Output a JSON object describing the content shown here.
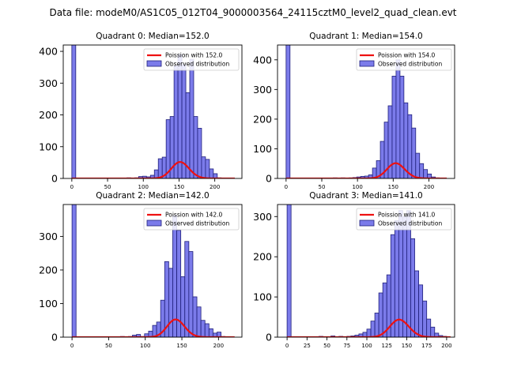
{
  "figure_title": "Data file: modeM0/AS1C05_012T04_9000003564_24115cztM0_level2_quad_clean.evt",
  "colors": {
    "bar_fill": "#7b7bea",
    "bar_edge": "#1f1f7a",
    "line": "#ee1111"
  },
  "chart_data": [
    {
      "type": "bar",
      "title": "Quadrant 0: Median=152.0",
      "xlim": [
        -12,
        238
      ],
      "ylim": [
        0,
        420
      ],
      "xticks": [
        0,
        50,
        100,
        150,
        200
      ],
      "yticks": [
        0,
        100,
        200,
        300,
        400
      ],
      "bin_width": 5.5,
      "legend": {
        "line_label": "Poission with 152.0",
        "bar_label": "Observed distribution",
        "position": "top-right"
      },
      "poisson_mean": 152.0,
      "line_scale": 1600,
      "line_xrange": [
        0,
        228
      ],
      "bars": [
        {
          "x": 0,
          "y": 420
        },
        {
          "x": 44,
          "y": 1
        },
        {
          "x": 55,
          "y": 1
        },
        {
          "x": 66,
          "y": 1
        },
        {
          "x": 77,
          "y": 2
        },
        {
          "x": 88,
          "y": 2
        },
        {
          "x": 93.5,
          "y": 6
        },
        {
          "x": 99,
          "y": 7
        },
        {
          "x": 104.5,
          "y": 5
        },
        {
          "x": 110,
          "y": 10
        },
        {
          "x": 115.5,
          "y": 27
        },
        {
          "x": 121,
          "y": 62
        },
        {
          "x": 126.5,
          "y": 67
        },
        {
          "x": 132,
          "y": 185
        },
        {
          "x": 137.5,
          "y": 195
        },
        {
          "x": 143,
          "y": 355
        },
        {
          "x": 148.5,
          "y": 390
        },
        {
          "x": 154,
          "y": 358
        },
        {
          "x": 159.5,
          "y": 270
        },
        {
          "x": 165,
          "y": 375
        },
        {
          "x": 170.5,
          "y": 195
        },
        {
          "x": 176,
          "y": 158
        },
        {
          "x": 181.5,
          "y": 68
        },
        {
          "x": 187,
          "y": 60
        },
        {
          "x": 192.5,
          "y": 30
        },
        {
          "x": 198,
          "y": 15
        },
        {
          "x": 203.5,
          "y": 2
        }
      ]
    },
    {
      "type": "bar",
      "title": "Quadrant 1: Median=154.0",
      "xlim": [
        -12,
        236
      ],
      "ylim": [
        0,
        450
      ],
      "xticks": [
        0,
        50,
        100,
        150,
        200
      ],
      "yticks": [
        0,
        100,
        200,
        300,
        400
      ],
      "bin_width": 5.5,
      "legend": {
        "line_label": "Poission with 154.0",
        "bar_label": "Observed distribution",
        "position": "top-right"
      },
      "poisson_mean": 154.0,
      "line_scale": 1600,
      "line_xrange": [
        0,
        225
      ],
      "bars": [
        {
          "x": 0,
          "y": 450
        },
        {
          "x": 44,
          "y": 1
        },
        {
          "x": 66,
          "y": 2
        },
        {
          "x": 77,
          "y": 2
        },
        {
          "x": 88,
          "y": 2
        },
        {
          "x": 93.5,
          "y": 3
        },
        {
          "x": 99,
          "y": 5
        },
        {
          "x": 104.5,
          "y": 7
        },
        {
          "x": 110,
          "y": 8
        },
        {
          "x": 115.5,
          "y": 12
        },
        {
          "x": 121,
          "y": 35
        },
        {
          "x": 126.5,
          "y": 60
        },
        {
          "x": 132,
          "y": 125
        },
        {
          "x": 137.5,
          "y": 190
        },
        {
          "x": 143,
          "y": 245
        },
        {
          "x": 148.5,
          "y": 345
        },
        {
          "x": 154,
          "y": 400
        },
        {
          "x": 159.5,
          "y": 345
        },
        {
          "x": 165,
          "y": 255
        },
        {
          "x": 170.5,
          "y": 215
        },
        {
          "x": 176,
          "y": 170
        },
        {
          "x": 181.5,
          "y": 85
        },
        {
          "x": 187,
          "y": 50
        },
        {
          "x": 192.5,
          "y": 30
        },
        {
          "x": 198,
          "y": 15
        },
        {
          "x": 203.5,
          "y": 5
        },
        {
          "x": 209,
          "y": 2
        }
      ]
    },
    {
      "type": "bar",
      "title": "Quadrant 2: Median=142.0",
      "xlim": [
        -12,
        232
      ],
      "ylim": [
        0,
        395
      ],
      "xticks": [
        0,
        50,
        100,
        150,
        200
      ],
      "yticks": [
        0,
        100,
        200,
        300
      ],
      "bin_width": 5.5,
      "legend": {
        "line_label": "Poission with 142.0",
        "bar_label": "Observed distribution",
        "position": "top-right"
      },
      "poisson_mean": 142.0,
      "line_scale": 1575,
      "line_xrange": [
        0,
        222
      ],
      "bars": [
        {
          "x": 0,
          "y": 395
        },
        {
          "x": 44,
          "y": 1
        },
        {
          "x": 55,
          "y": 1
        },
        {
          "x": 66,
          "y": 2
        },
        {
          "x": 71.5,
          "y": 1
        },
        {
          "x": 77,
          "y": 2
        },
        {
          "x": 82.5,
          "y": 6
        },
        {
          "x": 88,
          "y": 8
        },
        {
          "x": 93.5,
          "y": 2
        },
        {
          "x": 99,
          "y": 10
        },
        {
          "x": 104.5,
          "y": 18
        },
        {
          "x": 110,
          "y": 35
        },
        {
          "x": 115.5,
          "y": 45
        },
        {
          "x": 121,
          "y": 110
        },
        {
          "x": 126.5,
          "y": 225
        },
        {
          "x": 132,
          "y": 205
        },
        {
          "x": 137.5,
          "y": 362
        },
        {
          "x": 143,
          "y": 318
        },
        {
          "x": 148.5,
          "y": 180
        },
        {
          "x": 154,
          "y": 285
        },
        {
          "x": 159.5,
          "y": 255
        },
        {
          "x": 165,
          "y": 120
        },
        {
          "x": 170.5,
          "y": 90
        },
        {
          "x": 176,
          "y": 50
        },
        {
          "x": 181.5,
          "y": 40
        },
        {
          "x": 187,
          "y": 25
        },
        {
          "x": 192.5,
          "y": 12
        },
        {
          "x": 198,
          "y": 15
        },
        {
          "x": 203.5,
          "y": 2
        }
      ]
    },
    {
      "type": "bar",
      "title": "Quadrant 3: Median=141.0",
      "xlim": [
        -12,
        210
      ],
      "ylim": [
        0,
        330
      ],
      "xticks": [
        0,
        25,
        50,
        75,
        100,
        125,
        150,
        175,
        200
      ],
      "yticks": [
        0,
        100,
        200,
        300
      ],
      "bin_width": 5.0,
      "legend": {
        "line_label": "Poission with 141.0",
        "bar_label": "Observed distribution",
        "position": "top-right"
      },
      "poisson_mean": 141.0,
      "line_scale": 1300,
      "line_xrange": [
        0,
        205
      ],
      "bars": [
        {
          "x": 0,
          "y": 330
        },
        {
          "x": 30,
          "y": 1
        },
        {
          "x": 40,
          "y": 2
        },
        {
          "x": 45,
          "y": 1
        },
        {
          "x": 55,
          "y": 3
        },
        {
          "x": 65,
          "y": 2
        },
        {
          "x": 75,
          "y": 2
        },
        {
          "x": 80,
          "y": 3
        },
        {
          "x": 85,
          "y": 5
        },
        {
          "x": 90,
          "y": 8
        },
        {
          "x": 95,
          "y": 12
        },
        {
          "x": 100,
          "y": 20
        },
        {
          "x": 105,
          "y": 40
        },
        {
          "x": 110,
          "y": 60
        },
        {
          "x": 115,
          "y": 110
        },
        {
          "x": 120,
          "y": 135
        },
        {
          "x": 125,
          "y": 155
        },
        {
          "x": 130,
          "y": 255
        },
        {
          "x": 135,
          "y": 290
        },
        {
          "x": 140,
          "y": 315
        },
        {
          "x": 145,
          "y": 300
        },
        {
          "x": 150,
          "y": 315
        },
        {
          "x": 155,
          "y": 245
        },
        {
          "x": 160,
          "y": 165
        },
        {
          "x": 165,
          "y": 130
        },
        {
          "x": 170,
          "y": 90
        },
        {
          "x": 175,
          "y": 45
        },
        {
          "x": 180,
          "y": 25
        },
        {
          "x": 185,
          "y": 10
        },
        {
          "x": 190,
          "y": 4
        },
        {
          "x": 195,
          "y": 2
        }
      ]
    }
  ]
}
